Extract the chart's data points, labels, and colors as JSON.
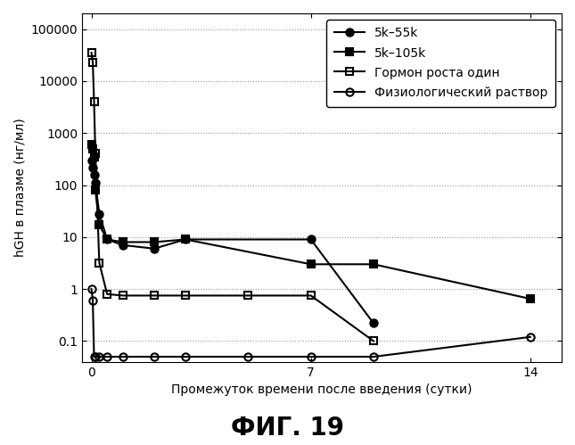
{
  "title": "ФИГ. 19",
  "xlabel": "Промежуток времени после введения (сутки)",
  "ylabel": "hGH в плазме (нг/мл)",
  "series": [
    {
      "label": "5k–55k",
      "x": [
        0,
        0.042,
        0.083,
        0.125,
        0.25,
        0.5,
        1.0,
        2.0,
        3.0,
        7.0,
        9.0
      ],
      "y": [
        300,
        220,
        160,
        110,
        28,
        9,
        7,
        6,
        9,
        9,
        0.22
      ],
      "marker": "o",
      "fillstyle": "full",
      "linewidth": 1.5,
      "markersize": 6
    },
    {
      "label": "5k–105k",
      "x": [
        0,
        0.042,
        0.083,
        0.125,
        0.25,
        0.5,
        1.0,
        2.0,
        3.0,
        7.0,
        9.0,
        14.0
      ],
      "y": [
        600,
        500,
        350,
        80,
        17,
        9,
        8,
        8,
        9,
        3.0,
        3.0,
        0.65
      ],
      "marker": "s",
      "fillstyle": "full",
      "linewidth": 1.5,
      "markersize": 6
    },
    {
      "label": "Гормон роста один",
      "x": [
        0,
        0.042,
        0.083,
        0.125,
        0.25,
        0.5,
        1.0,
        2.0,
        3.0,
        5.0,
        7.0,
        9.0
      ],
      "y": [
        35000,
        23000,
        4000,
        400,
        3.2,
        0.8,
        0.75,
        0.75,
        0.75,
        0.75,
        0.75,
        0.1
      ],
      "marker": "s",
      "fillstyle": "none",
      "linewidth": 1.5,
      "markersize": 6
    },
    {
      "label": "Физиологический раствор",
      "x": [
        0,
        0.042,
        0.083,
        0.125,
        0.25,
        0.5,
        1.0,
        2.0,
        3.0,
        5.0,
        7.0,
        9.0,
        14.0
      ],
      "y": [
        1.0,
        0.6,
        0.05,
        0.05,
        0.05,
        0.05,
        0.05,
        0.05,
        0.05,
        0.05,
        0.05,
        0.05,
        0.12
      ],
      "marker": "o",
      "fillstyle": "none",
      "linewidth": 1.5,
      "markersize": 6
    }
  ],
  "xlim": [
    -0.3,
    15.0
  ],
  "ylim_log": [
    0.04,
    200000
  ],
  "xticks": [
    0,
    7,
    14
  ],
  "yticks": [
    0.1,
    1,
    10,
    100,
    1000,
    10000,
    100000
  ],
  "ytick_labels": [
    "0.1",
    "1",
    "10",
    "100",
    "1000",
    "10000",
    "100000"
  ],
  "background_color": "#ffffff",
  "grid_color": "#999999",
  "grid_style": ":",
  "title_fontsize": 20,
  "axis_fontsize": 10,
  "tick_fontsize": 10,
  "legend_fontsize": 10
}
